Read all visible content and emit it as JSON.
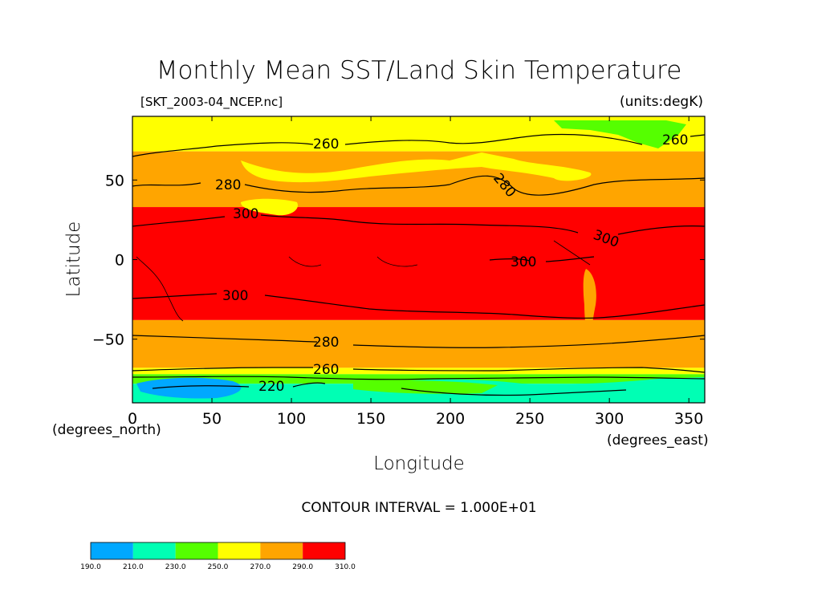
{
  "chart_data": {
    "type": "heatmap",
    "title": "Monthly Mean SST/Land Skin Temperature",
    "file_label": "[SKT_2003-04_NCEP.nc]",
    "units_label": "(units:degK)",
    "xlabel": "Longitude",
    "ylabel": "Latitude",
    "x_units": "(degrees_east)",
    "y_units": "(degrees_north)",
    "xlim": [
      0,
      360
    ],
    "ylim": [
      -90,
      90
    ],
    "x_ticks": [
      "0",
      "50",
      "100",
      "150",
      "200",
      "250",
      "300",
      "350"
    ],
    "y_ticks": [
      "50",
      "0",
      "−50"
    ],
    "x_tick_values": [
      0,
      50,
      100,
      150,
      200,
      250,
      300,
      350
    ],
    "y_tick_values": [
      50,
      0,
      -50
    ],
    "contour_interval_label": "CONTOUR INTERVAL = 1.000E+01",
    "contour_labels": [
      "260",
      "260",
      "280",
      "280",
      "300",
      "300",
      "300",
      "300",
      "280",
      "260",
      "220"
    ],
    "colorbar": {
      "levels": [
        190,
        210,
        230,
        250,
        270,
        290,
        310
      ],
      "level_labels": [
        "190.0",
        "210.0",
        "230.0",
        "250.0",
        "270.0",
        "290.0",
        "310.0"
      ],
      "colors": [
        "#00a8ff",
        "#00ffb4",
        "#55ff00",
        "#ffff00",
        "#ffa500",
        "#ff0000"
      ]
    },
    "zonal_bands": [
      {
        "lat_top": 90,
        "lat_bottom": 68,
        "value": 265
      },
      {
        "lat_top": 68,
        "lat_bottom": 33,
        "value": 280
      },
      {
        "lat_top": 33,
        "lat_bottom": -38,
        "value": 300
      },
      {
        "lat_top": -38,
        "lat_bottom": -68,
        "value": 280
      },
      {
        "lat_top": -68,
        "lat_bottom": -72,
        "value": 265
      },
      {
        "lat_top": -72,
        "lat_bottom": -78,
        "value": 240
      },
      {
        "lat_top": -78,
        "lat_bottom": -90,
        "value": 220
      }
    ]
  }
}
